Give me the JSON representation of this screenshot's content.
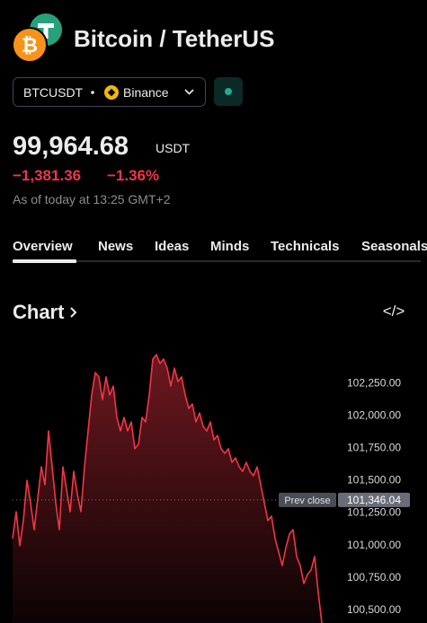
{
  "header": {
    "title": "Bitcoin / TetherUS",
    "symbol": "BTCUSDT",
    "exchange": "Binance",
    "price": "99,964.68",
    "currency": "USDT",
    "change": "−1,381.36",
    "change_pct": "−1.36%",
    "as_of": "As of today at 13:25 GMT+2"
  },
  "tabs": [
    "Overview",
    "News",
    "Ideas",
    "Minds",
    "Technicals",
    "Seasonals"
  ],
  "chart_section": {
    "heading": "Chart",
    "embed": "</>"
  },
  "chart_data": {
    "type": "area",
    "color": "#f23645",
    "values": [
      101047,
      101255,
      100992,
      101186,
      101497,
      101324,
      101116,
      101359,
      101601,
      101463,
      101878,
      101601,
      101324,
      101116,
      101601,
      101428,
      101255,
      101566,
      101393,
      101255,
      101601,
      101878,
      102155,
      102328,
      102294,
      102120,
      102294,
      102155,
      102224,
      101982,
      101878,
      101982,
      101878,
      101947,
      101740,
      101774,
      101982,
      101947,
      102155,
      102432,
      102467,
      102398,
      102432,
      102363,
      102224,
      102363,
      102259,
      102294,
      102155,
      102051,
      102086,
      101947,
      102017,
      101913,
      101878,
      101947,
      101809,
      101843,
      101740,
      101705,
      101740,
      101636,
      101670,
      101601,
      101566,
      101636,
      101566,
      101532,
      101601,
      101463,
      101324,
      101186,
      101220,
      101047,
      100943,
      100839,
      100978,
      101082,
      101116,
      100909,
      100839,
      100701,
      100770,
      100805,
      100909,
      100632,
      100396
    ],
    "ylim": [
      100396,
      102536
    ],
    "yticks": [
      {
        "value": 100500,
        "label": "100,500.00"
      },
      {
        "value": 100750,
        "label": "100,750.00"
      },
      {
        "value": 101000,
        "label": "101,000.00"
      },
      {
        "value": 101250,
        "label": "101,250.00"
      },
      {
        "value": 101500,
        "label": "101,500.00"
      },
      {
        "value": 101750,
        "label": "101,750.00"
      },
      {
        "value": 102000,
        "label": "102,000.00"
      },
      {
        "value": 102250,
        "label": "102,250.00"
      }
    ],
    "prev_close": {
      "label": "Prev close",
      "value": 101346.04,
      "value_label": "101,346.04"
    }
  }
}
